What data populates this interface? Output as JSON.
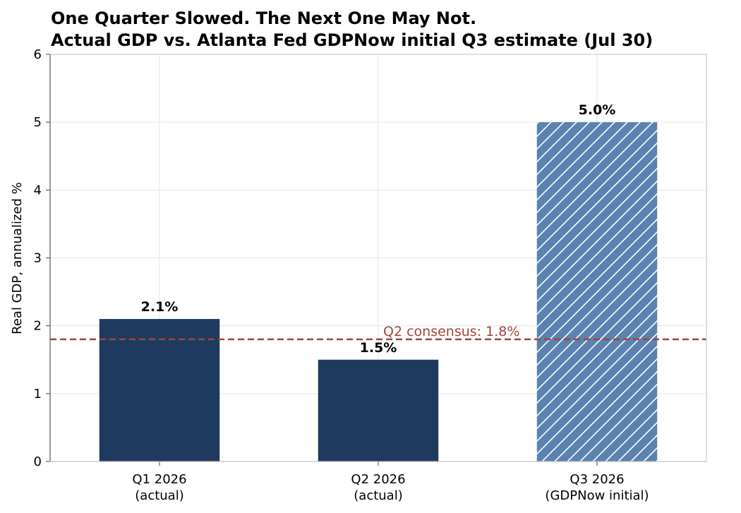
{
  "chart_data": {
    "type": "bar",
    "title": "One Quarter Slowed. The Next One May Not.",
    "subtitle": "Actual GDP vs. Atlanta Fed GDPNow initial Q3 estimate (Jul 30)",
    "ylabel": "Real GDP, annualized %",
    "xlabel": "",
    "ylim": [
      0,
      6
    ],
    "yticks": [
      "0",
      "1",
      "2",
      "3",
      "4",
      "5",
      "6"
    ],
    "grid": true,
    "categories": [
      {
        "line1": "Q1 2026",
        "line2": "(actual)"
      },
      {
        "line1": "Q2 2026",
        "line2": "(actual)"
      },
      {
        "line1": "Q3 2026",
        "line2": "(GDPNow initial)"
      }
    ],
    "values": [
      2.1,
      1.5,
      5.0
    ],
    "value_labels": [
      "2.1%",
      "1.5%",
      "5.0%"
    ],
    "bar_styles": [
      "solid",
      "solid",
      "hatched"
    ],
    "bar_colors": [
      "#1f3a5f",
      "#1f3a5f",
      "#5b82b0"
    ],
    "reference_line": {
      "value": 1.8,
      "label": "Q2 consensus: 1.8%",
      "color": "#a0463c",
      "style": "dashed"
    }
  }
}
